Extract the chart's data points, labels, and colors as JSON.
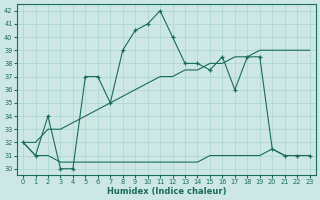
{
  "xlabel": "Humidex (Indice chaleur)",
  "background_color": "#cde8e4",
  "grid_color": "#a8d4ce",
  "line_color": "#1a6b5a",
  "xlim": [
    -0.5,
    23.5
  ],
  "ylim": [
    29.5,
    42.5
  ],
  "xticks": [
    0,
    1,
    2,
    3,
    4,
    5,
    6,
    7,
    8,
    9,
    10,
    11,
    12,
    13,
    14,
    15,
    16,
    17,
    18,
    19,
    20,
    21,
    22,
    23
  ],
  "yticks": [
    30,
    31,
    32,
    33,
    34,
    35,
    36,
    37,
    38,
    39,
    40,
    41,
    42
  ],
  "line_zigzag": {
    "x": [
      0,
      1,
      2,
      3,
      4,
      5,
      6,
      7,
      8,
      9,
      10,
      11,
      12,
      13,
      14,
      15,
      16,
      17,
      18,
      19,
      20,
      21,
      22,
      23
    ],
    "y": [
      32,
      31,
      34,
      30,
      30,
      37,
      37,
      35,
      39,
      40.5,
      41,
      42,
      40,
      38,
      38,
      37.5,
      38.5,
      36,
      38.5,
      38.5,
      31.5,
      31,
      31,
      31
    ]
  },
  "line_diagonal": {
    "x": [
      0,
      1,
      2,
      3,
      4,
      5,
      6,
      7,
      8,
      9,
      10,
      11,
      12,
      13,
      14,
      15,
      16,
      17,
      18,
      19,
      20,
      21,
      22,
      23
    ],
    "y": [
      32,
      32,
      33,
      33,
      33.5,
      34,
      34.5,
      35,
      35.5,
      36,
      36.5,
      37,
      37,
      37.5,
      37.5,
      38,
      38,
      38.5,
      38.5,
      39,
      39,
      39,
      39,
      39
    ]
  },
  "line_flat": {
    "x": [
      0,
      1,
      2,
      3,
      4,
      5,
      6,
      7,
      8,
      9,
      10,
      11,
      12,
      13,
      14,
      15,
      16,
      17,
      18,
      19,
      20,
      21,
      22,
      23
    ],
    "y": [
      32,
      31,
      31,
      30.5,
      30.5,
      30.5,
      30.5,
      30.5,
      30.5,
      30.5,
      30.5,
      30.5,
      30.5,
      30.5,
      30.5,
      31,
      31,
      31,
      31,
      31,
      31.5,
      31,
      31,
      31
    ]
  }
}
